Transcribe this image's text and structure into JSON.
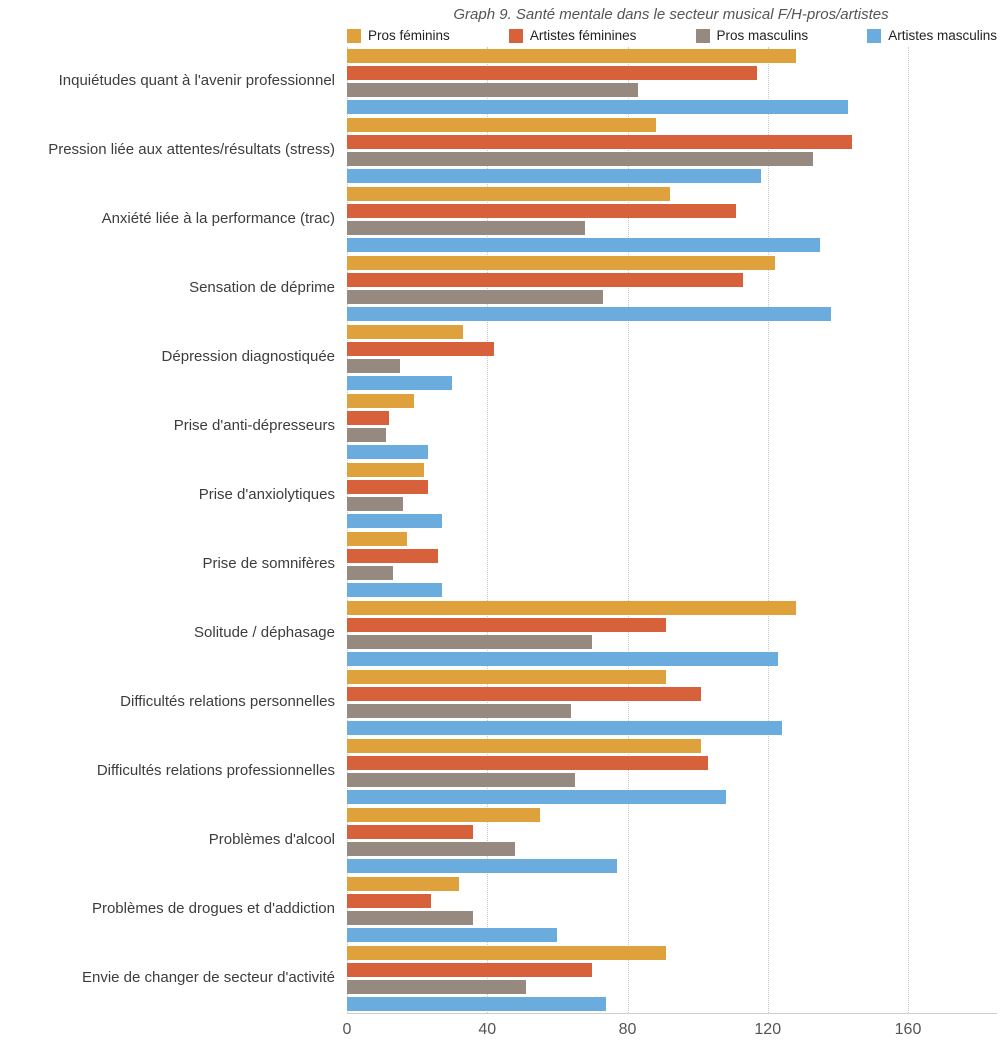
{
  "title": "Graph 9. Santé mentale dans le secteur musical F/H-pros/artistes",
  "chart_data": {
    "type": "bar",
    "orientation": "horizontal",
    "title": "Graph 9. Santé mentale dans le secteur musical F/H-pros/artistes",
    "xlabel": "",
    "ylabel": "",
    "xlim": [
      0,
      160
    ],
    "x_ticks": [
      0,
      40,
      80,
      120,
      160
    ],
    "grid": "vertical dotted gridlines",
    "legend_position": "top",
    "categories": [
      "Inquiétudes quant à l'avenir professionnel",
      "Pression liée aux attentes/résultats (stress)",
      "Anxiété liée à la performance (trac)",
      "Sensation de déprime",
      "Dépression diagnostiquée",
      "Prise d'anti-dépresseurs",
      "Prise d'anxiolytiques",
      "Prise de somnifères",
      "Solitude / déphasage",
      "Difficultés relations personnelles",
      "Difficultés relations professionnelles",
      "Problèmes d'alcool",
      "Problèmes de drogues et d'addiction",
      "Envie de changer de secteur d'activité"
    ],
    "series": [
      {
        "name": "Pros féminins",
        "color": "#DFA13C",
        "values": [
          128,
          88,
          92,
          122,
          33,
          19,
          22,
          17,
          128,
          91,
          101,
          55,
          32,
          91
        ]
      },
      {
        "name": "Artistes féminines",
        "color": "#D6613A",
        "values": [
          117,
          144,
          111,
          113,
          42,
          12,
          23,
          26,
          91,
          101,
          103,
          36,
          24,
          70
        ]
      },
      {
        "name": "Pros masculins",
        "color": "#96897F",
        "values": [
          83,
          133,
          68,
          73,
          15,
          11,
          16,
          13,
          70,
          64,
          65,
          48,
          36,
          51
        ]
      },
      {
        "name": "Artistes masculins",
        "color": "#6BACDE",
        "values": [
          143,
          118,
          135,
          138,
          30,
          23,
          27,
          27,
          123,
          124,
          108,
          77,
          60,
          74
        ]
      }
    ]
  }
}
